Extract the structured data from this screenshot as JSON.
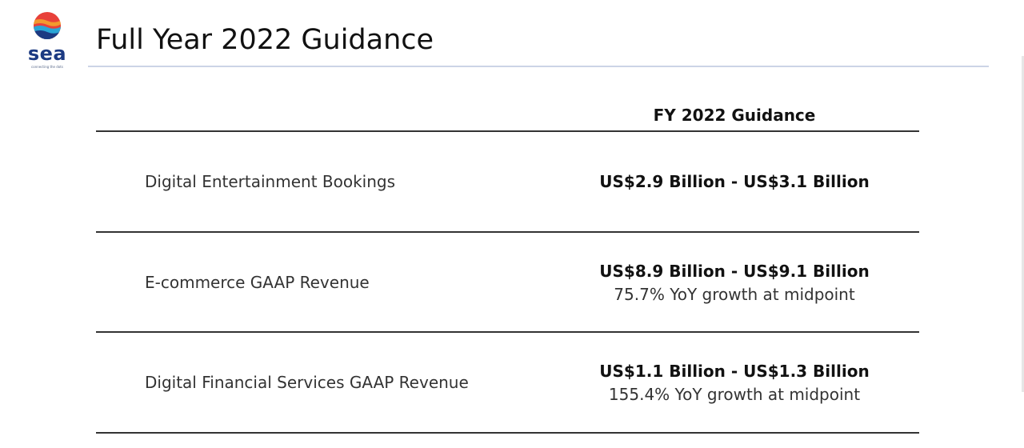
{
  "brand": {
    "name": "sea",
    "tagline": "connecting the dots",
    "colors": {
      "wordmark": "#1c3a82",
      "circle_top": "#e8413a",
      "circle_mid": "#f29a2e",
      "circle_low": "#2aa6d6",
      "circle_bottom": "#1c3a82"
    }
  },
  "slide": {
    "title": "Full Year 2022 Guidance"
  },
  "table": {
    "column_header": "FY 2022 Guidance",
    "rows": [
      {
        "label": "Digital Entertainment Bookings",
        "value": "US$2.9 Billion - US$3.1 Billion",
        "note": ""
      },
      {
        "label": "E-commerce GAAP Revenue",
        "value": "US$8.9 Billion - US$9.1 Billion",
        "note": "75.7% YoY growth at midpoint"
      },
      {
        "label": "Digital Financial Services GAAP Revenue",
        "value": "US$1.1 Billion - US$1.3 Billion",
        "note": "155.4% YoY growth at midpoint"
      }
    ]
  }
}
